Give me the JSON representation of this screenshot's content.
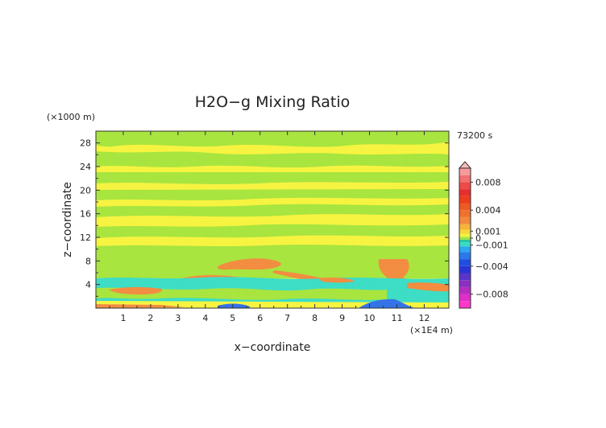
{
  "chart_data": {
    "type": "heatmap",
    "title": "H2O−g Mixing Ratio",
    "xlabel": "x−coordinate",
    "ylabel": "z−coordinate",
    "x_multiplier": "(×1E4 m)",
    "y_multiplier": "(×1000 m)",
    "time_label": "73200 s",
    "xlim": [
      0,
      12.9
    ],
    "ylim": [
      0,
      30
    ],
    "x_ticks": [
      "1",
      "2",
      "3",
      "4",
      "5",
      "6",
      "7",
      "8",
      "9",
      "10",
      "11",
      "12"
    ],
    "y_ticks": [
      "4",
      "8",
      "12",
      "16",
      "20",
      "24",
      "28"
    ],
    "colorbar_labels": [
      "0.008",
      "0.004",
      "0.001",
      "0",
      "−0.001",
      "−0.004",
      "−0.008"
    ],
    "colorbar_label_values": [
      0.008,
      0.004,
      0.001,
      0,
      -0.001,
      -0.004,
      -0.008
    ],
    "colorbar_range": [
      -0.01,
      0.01
    ],
    "colors": {
      "yellow": "#f6f33c",
      "green": "#a6e43a",
      "cyan": "#38dcc4",
      "teal": "#26c8a0",
      "orange": "#f28a3c",
      "blue": "#2f6fe6"
    },
    "regions_note_free": true
  }
}
